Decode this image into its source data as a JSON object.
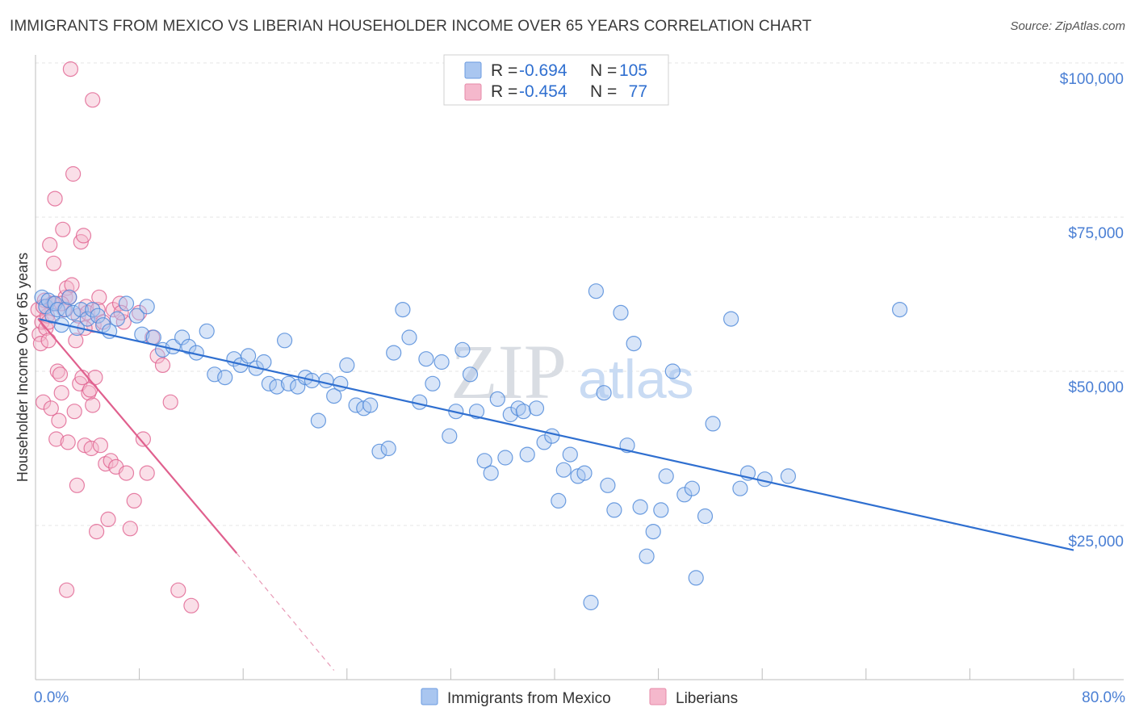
{
  "header": {
    "title": "IMMIGRANTS FROM MEXICO VS LIBERIAN HOUSEHOLDER INCOME OVER 65 YEARS CORRELATION CHART",
    "source": "Source: ZipAtlas.com"
  },
  "watermark": {
    "zip": "ZIP",
    "atlas": "atlas"
  },
  "legend": {
    "rows": [
      {
        "r_label": "R =",
        "r_value": "-0.694",
        "n_label": "N =",
        "n_value": "105",
        "color": "#a9c6f0"
      },
      {
        "r_label": "R =",
        "r_value": "-0.454",
        "n_label": "N =",
        "n_value": "77",
        "color": "#f5b8cc"
      }
    ]
  },
  "bottom_legend": {
    "items": [
      {
        "label": "Immigrants from Mexico",
        "color": "#a9c6f0"
      },
      {
        "label": "Liberians",
        "color": "#f5b8cc"
      }
    ]
  },
  "chart_data": {
    "type": "scatter",
    "title": "IMMIGRANTS FROM MEXICO VS LIBERIAN HOUSEHOLDER INCOME OVER 65 YEARS CORRELATION CHART",
    "xlabel": "",
    "ylabel": "Householder Income Over 65 years",
    "xlim": [
      0,
      80
    ],
    "ylim": [
      0,
      100000
    ],
    "x_tick_labels": [
      "0.0%",
      "80.0%"
    ],
    "y_ticks": [
      25000,
      50000,
      75000,
      100000
    ],
    "y_tick_labels": [
      "$25,000",
      "$50,000",
      "$75,000",
      "$100,000"
    ],
    "grid": true,
    "legend_position": "top-center",
    "colors": {
      "mexico": "#4a86d8",
      "mexico_fill": "#a9c6f0",
      "liberians": "#e0608e",
      "liberians_fill": "#f5b8cc"
    },
    "series": [
      {
        "name": "Immigrants from Mexico",
        "trend": {
          "x": [
            0.2,
            80.0
          ],
          "y": [
            58500,
            21000
          ]
        },
        "points": [
          [
            0.5,
            62000
          ],
          [
            0.8,
            60500
          ],
          [
            1.0,
            61500
          ],
          [
            1.3,
            59000
          ],
          [
            1.5,
            61000
          ],
          [
            1.7,
            60000
          ],
          [
            2.0,
            57500
          ],
          [
            2.3,
            60000
          ],
          [
            2.6,
            62000
          ],
          [
            2.9,
            59500
          ],
          [
            3.2,
            57000
          ],
          [
            3.5,
            60000
          ],
          [
            4.0,
            58500
          ],
          [
            4.4,
            60000
          ],
          [
            4.8,
            59000
          ],
          [
            5.2,
            57500
          ],
          [
            5.7,
            56500
          ],
          [
            6.3,
            58500
          ],
          [
            7.0,
            61000
          ],
          [
            7.8,
            59000
          ],
          [
            8.2,
            56000
          ],
          [
            8.6,
            60500
          ],
          [
            9.1,
            55500
          ],
          [
            9.8,
            53500
          ],
          [
            10.6,
            54000
          ],
          [
            11.3,
            55500
          ],
          [
            11.8,
            54000
          ],
          [
            12.4,
            53000
          ],
          [
            13.2,
            56500
          ],
          [
            13.8,
            49500
          ],
          [
            14.6,
            49000
          ],
          [
            15.3,
            52000
          ],
          [
            15.8,
            51000
          ],
          [
            16.4,
            52500
          ],
          [
            17.0,
            50500
          ],
          [
            17.6,
            51500
          ],
          [
            18.0,
            48000
          ],
          [
            18.6,
            47500
          ],
          [
            19.2,
            55000
          ],
          [
            19.5,
            48000
          ],
          [
            20.2,
            47500
          ],
          [
            20.8,
            49000
          ],
          [
            21.3,
            48500
          ],
          [
            21.8,
            42000
          ],
          [
            22.4,
            48500
          ],
          [
            23.0,
            46000
          ],
          [
            23.5,
            48000
          ],
          [
            24.0,
            51000
          ],
          [
            24.7,
            44500
          ],
          [
            25.3,
            44000
          ],
          [
            25.8,
            44500
          ],
          [
            26.5,
            37000
          ],
          [
            27.2,
            37500
          ],
          [
            27.6,
            53000
          ],
          [
            28.3,
            60000
          ],
          [
            28.8,
            55500
          ],
          [
            29.6,
            45000
          ],
          [
            30.1,
            52000
          ],
          [
            30.6,
            48000
          ],
          [
            31.3,
            51500
          ],
          [
            31.9,
            39500
          ],
          [
            32.4,
            43500
          ],
          [
            32.9,
            53500
          ],
          [
            33.5,
            49500
          ],
          [
            34.0,
            43500
          ],
          [
            34.6,
            35500
          ],
          [
            35.1,
            33500
          ],
          [
            35.6,
            45500
          ],
          [
            36.2,
            36000
          ],
          [
            36.6,
            43000
          ],
          [
            37.2,
            44000
          ],
          [
            37.6,
            43500
          ],
          [
            37.9,
            36500
          ],
          [
            38.6,
            44000
          ],
          [
            39.2,
            38500
          ],
          [
            39.8,
            39500
          ],
          [
            40.3,
            29000
          ],
          [
            40.7,
            34000
          ],
          [
            41.2,
            36500
          ],
          [
            41.8,
            33000
          ],
          [
            42.3,
            33500
          ],
          [
            43.2,
            63000
          ],
          [
            43.8,
            46500
          ],
          [
            44.1,
            31500
          ],
          [
            44.6,
            27500
          ],
          [
            45.1,
            59500
          ],
          [
            45.6,
            38000
          ],
          [
            46.1,
            54500
          ],
          [
            46.6,
            28000
          ],
          [
            47.1,
            20000
          ],
          [
            47.6,
            24000
          ],
          [
            48.2,
            27500
          ],
          [
            48.6,
            33000
          ],
          [
            49.1,
            50000
          ],
          [
            50.0,
            30000
          ],
          [
            50.6,
            31000
          ],
          [
            50.9,
            16500
          ],
          [
            51.6,
            26500
          ],
          [
            52.2,
            41500
          ],
          [
            53.6,
            58500
          ],
          [
            54.3,
            31000
          ],
          [
            54.9,
            33500
          ],
          [
            56.2,
            32500
          ],
          [
            58.0,
            33000
          ],
          [
            66.6,
            60000
          ],
          [
            42.8,
            12500
          ]
        ]
      },
      {
        "name": "Liberians",
        "trend": {
          "x": [
            0.2,
            15.5
          ],
          "y": [
            58500,
            20500
          ]
        },
        "trend_dashed": {
          "x": [
            15.5,
            23.0
          ],
          "y": [
            20500,
            1500
          ]
        },
        "points": [
          [
            0.2,
            60000
          ],
          [
            0.3,
            56000
          ],
          [
            0.4,
            54500
          ],
          [
            0.5,
            58000
          ],
          [
            0.6,
            45000
          ],
          [
            0.7,
            61500
          ],
          [
            0.8,
            57000
          ],
          [
            0.9,
            59000
          ],
          [
            1.0,
            55000
          ],
          [
            1.1,
            70500
          ],
          [
            1.2,
            44000
          ],
          [
            1.3,
            61000
          ],
          [
            1.4,
            67500
          ],
          [
            1.5,
            78000
          ],
          [
            1.6,
            39000
          ],
          [
            1.7,
            50000
          ],
          [
            1.8,
            42000
          ],
          [
            1.9,
            49500
          ],
          [
            2.0,
            46500
          ],
          [
            2.1,
            73000
          ],
          [
            2.2,
            60000
          ],
          [
            2.3,
            62000
          ],
          [
            2.4,
            63500
          ],
          [
            2.5,
            38500
          ],
          [
            2.6,
            62000
          ],
          [
            2.7,
            99000
          ],
          [
            2.8,
            64000
          ],
          [
            2.9,
            82000
          ],
          [
            3.0,
            43500
          ],
          [
            3.1,
            55000
          ],
          [
            3.2,
            31500
          ],
          [
            3.3,
            59000
          ],
          [
            3.4,
            48000
          ],
          [
            3.5,
            71000
          ],
          [
            3.6,
            49000
          ],
          [
            3.7,
            72000
          ],
          [
            3.8,
            38000
          ],
          [
            3.9,
            60500
          ],
          [
            4.0,
            59500
          ],
          [
            4.1,
            46500
          ],
          [
            4.2,
            47000
          ],
          [
            4.3,
            37500
          ],
          [
            4.4,
            94000
          ],
          [
            4.5,
            57500
          ],
          [
            4.6,
            49000
          ],
          [
            4.7,
            24000
          ],
          [
            4.8,
            60000
          ],
          [
            4.9,
            62000
          ],
          [
            5.0,
            38000
          ],
          [
            5.2,
            58000
          ],
          [
            5.4,
            35000
          ],
          [
            5.6,
            26000
          ],
          [
            5.8,
            35500
          ],
          [
            6.0,
            60000
          ],
          [
            6.2,
            34500
          ],
          [
            6.5,
            61000
          ],
          [
            6.8,
            58000
          ],
          [
            7.0,
            33500
          ],
          [
            7.3,
            24500
          ],
          [
            7.6,
            29000
          ],
          [
            8.0,
            59500
          ],
          [
            8.3,
            39000
          ],
          [
            8.6,
            33500
          ],
          [
            9.0,
            55500
          ],
          [
            9.4,
            52500
          ],
          [
            9.8,
            51000
          ],
          [
            10.4,
            45000
          ],
          [
            11.0,
            14500
          ],
          [
            12.0,
            12000
          ],
          [
            2.4,
            14500
          ],
          [
            1.0,
            58000
          ],
          [
            0.6,
            60500
          ],
          [
            1.4,
            61000
          ],
          [
            2.0,
            61000
          ],
          [
            3.8,
            57000
          ],
          [
            6.6,
            59500
          ],
          [
            4.4,
            44500
          ]
        ]
      }
    ]
  }
}
